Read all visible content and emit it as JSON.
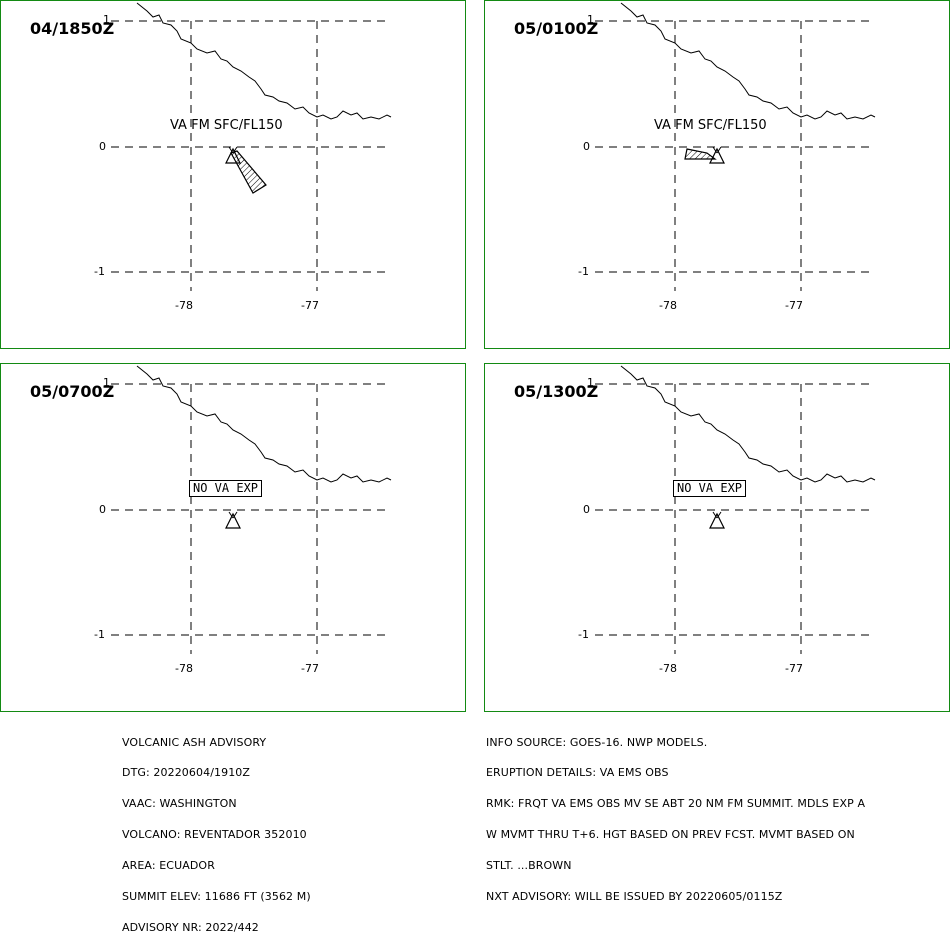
{
  "panels": [
    {
      "time": "04/1850Z",
      "va_label": "VA FM SFC/FL150",
      "status": "",
      "cloud": "se"
    },
    {
      "time": "05/0100Z",
      "va_label": "VA FM SFC/FL150",
      "status": "",
      "cloud": "w"
    },
    {
      "time": "05/0700Z",
      "va_label": "",
      "status": "NO VA EXP",
      "cloud": "none"
    },
    {
      "time": "05/1300Z",
      "va_label": "",
      "status": "NO VA EXP",
      "cloud": "none"
    }
  ],
  "axis": {
    "lat_top": "1",
    "lat_mid": "0",
    "lat_bottom": "-1",
    "lon_left": "-78",
    "lon_right": "-77"
  },
  "advisory_left": {
    "line1": "VOLCANIC ASH ADVISORY",
    "line2": "DTG: 20220604/1910Z",
    "line3": "VAAC: WASHINGTON",
    "line4": "VOLCANO: REVENTADOR 352010",
    "line5": "AREA: ECUADOR",
    "line6": "SUMMIT ELEV: 11686 FT (3562 M)",
    "line7": "ADVISORY NR: 2022/442"
  },
  "advisory_right": {
    "line1": "INFO SOURCE: GOES-16. NWP MODELS.",
    "line2": "ERUPTION DETAILS: VA EMS OBS",
    "line3": "RMK: FRQT VA EMS OBS MV SE ABT 20 NM FM SUMMIT. MDLS EXP A",
    "line4": "W MVMT THRU T+6. HGT BASED ON PREV FCST. MVMT BASED ON",
    "line5": "STLT. ...BROWN",
    "line6": "NXT ADVISORY: WILL BE ISSUED BY 20220605/0115Z"
  },
  "colors": {
    "border": "#138a13",
    "lines": "#000000",
    "background": "#ffffff"
  }
}
